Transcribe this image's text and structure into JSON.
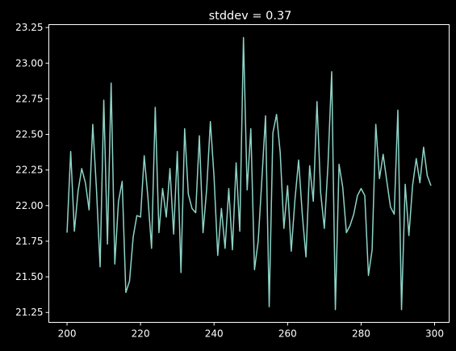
{
  "chart_data": {
    "type": "line",
    "title": "stddev = 0.37",
    "xlabel": "",
    "ylabel": "",
    "xlim": [
      195.05,
      303.95
    ],
    "ylim": [
      21.1805,
      23.2705
    ],
    "xticks": [
      200,
      220,
      240,
      260,
      280,
      300
    ],
    "xtick_labels": [
      "200",
      "220",
      "240",
      "260",
      "280",
      "300"
    ],
    "yticks": [
      21.25,
      21.5,
      21.75,
      22.0,
      22.25,
      22.5,
      22.75,
      23.0,
      23.25
    ],
    "ytick_labels": [
      "21.25",
      "21.50",
      "21.75",
      "22.00",
      "22.25",
      "22.50",
      "22.75",
      "23.00",
      "23.25"
    ],
    "grid": false,
    "legend": "none",
    "colors": {
      "background": "#000000",
      "line": "#8dd3c7",
      "axes": "#ffffff",
      "text": "#ffffff"
    },
    "series": [
      {
        "x": [
          200,
          201,
          202,
          203,
          204,
          205,
          206,
          207,
          208,
          209,
          210,
          211,
          212,
          213,
          214,
          215,
          216,
          217,
          218,
          219,
          220,
          221,
          222,
          223,
          224,
          225,
          226,
          227,
          228,
          229,
          230,
          231,
          232,
          233,
          234,
          235,
          236,
          237,
          238,
          239,
          240,
          241,
          242,
          243,
          244,
          245,
          246,
          247,
          248,
          249,
          250,
          251,
          252,
          253,
          254,
          255,
          256,
          257,
          258,
          259,
          260,
          261,
          262,
          263,
          264,
          265,
          266,
          267,
          268,
          269,
          270,
          271,
          272,
          273,
          274,
          275,
          276,
          277,
          278,
          279,
          280,
          281,
          282,
          283,
          284,
          285,
          286,
          287,
          288,
          289,
          290,
          291,
          292,
          293,
          294,
          295,
          296,
          297,
          298,
          299
        ],
        "values": [
          21.81,
          22.38,
          21.82,
          22.1,
          22.26,
          22.16,
          21.97,
          22.57,
          22.12,
          21.57,
          22.74,
          21.73,
          22.86,
          21.59,
          22.03,
          22.17,
          21.39,
          21.47,
          21.78,
          21.93,
          21.92,
          22.35,
          22.06,
          21.7,
          22.69,
          21.81,
          22.12,
          21.92,
          22.26,
          21.8,
          22.38,
          21.53,
          22.54,
          22.08,
          21.98,
          21.95,
          22.49,
          21.81,
          22.12,
          22.59,
          22.2,
          21.65,
          21.98,
          21.7,
          22.12,
          21.69,
          22.3,
          21.82,
          23.18,
          22.11,
          22.54,
          21.55,
          21.75,
          22.18,
          22.63,
          21.29,
          22.51,
          22.64,
          22.37,
          21.84,
          22.14,
          21.68,
          22.04,
          22.32,
          21.94,
          21.64,
          22.28,
          22.03,
          22.73,
          22.09,
          21.84,
          22.29,
          22.94,
          21.27,
          22.29,
          22.13,
          21.81,
          21.86,
          21.94,
          22.07,
          22.12,
          22.07,
          21.51,
          21.69,
          22.57,
          22.19,
          22.36,
          22.17,
          21.99,
          21.94,
          22.67,
          21.27,
          22.15,
          21.79,
          22.14,
          22.33,
          22.16,
          22.41,
          22.21,
          22.14
        ]
      }
    ]
  }
}
